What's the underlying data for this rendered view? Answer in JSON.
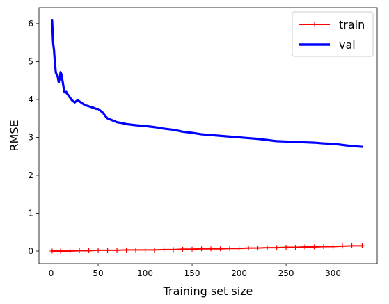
{
  "chart_data": {
    "type": "line",
    "title": "",
    "xlabel": "Training set size",
    "ylabel": "RMSE",
    "xlim": [
      -13,
      347
    ],
    "ylim": [
      -0.33,
      6.42
    ],
    "xticks": [
      0,
      50,
      100,
      150,
      200,
      250,
      300
    ],
    "yticks": [
      0,
      1,
      2,
      3,
      4,
      5,
      6
    ],
    "grid": false,
    "legend_position": "top-right",
    "series": [
      {
        "name": "train",
        "color": "#ff0000",
        "line_style": "solid",
        "marker": "plus",
        "x": [
          1,
          10,
          20,
          30,
          40,
          50,
          60,
          70,
          80,
          90,
          100,
          110,
          120,
          130,
          140,
          150,
          160,
          170,
          180,
          190,
          200,
          210,
          220,
          230,
          240,
          250,
          260,
          270,
          280,
          290,
          300,
          310,
          320,
          331
        ],
        "y": [
          0.0,
          0.0,
          0.0,
          0.01,
          0.01,
          0.02,
          0.02,
          0.02,
          0.03,
          0.03,
          0.03,
          0.03,
          0.04,
          0.04,
          0.05,
          0.05,
          0.06,
          0.06,
          0.06,
          0.07,
          0.07,
          0.08,
          0.08,
          0.09,
          0.09,
          0.1,
          0.1,
          0.11,
          0.11,
          0.12,
          0.12,
          0.13,
          0.14,
          0.14
        ]
      },
      {
        "name": "val",
        "color": "#0000ff",
        "line_style": "solid",
        "marker": "none",
        "x": [
          1,
          2,
          3,
          4,
          5,
          6,
          7,
          8,
          9,
          10,
          11,
          12,
          13,
          14,
          15,
          16,
          17,
          18,
          20,
          22,
          25,
          28,
          30,
          33,
          36,
          40,
          45,
          48,
          50,
          55,
          58,
          60,
          65,
          70,
          75,
          80,
          90,
          100,
          110,
          120,
          130,
          140,
          150,
          160,
          170,
          180,
          190,
          200,
          210,
          220,
          230,
          240,
          250,
          260,
          270,
          280,
          290,
          300,
          310,
          320,
          331
        ],
        "y": [
          6.08,
          5.5,
          5.3,
          4.95,
          4.7,
          4.65,
          4.6,
          4.45,
          4.55,
          4.72,
          4.65,
          4.5,
          4.35,
          4.2,
          4.18,
          4.2,
          4.15,
          4.12,
          4.05,
          3.98,
          3.92,
          3.98,
          3.95,
          3.9,
          3.85,
          3.82,
          3.78,
          3.75,
          3.75,
          3.65,
          3.55,
          3.5,
          3.45,
          3.4,
          3.38,
          3.35,
          3.32,
          3.3,
          3.27,
          3.23,
          3.2,
          3.15,
          3.12,
          3.08,
          3.06,
          3.04,
          3.02,
          3.0,
          2.98,
          2.96,
          2.93,
          2.9,
          2.89,
          2.88,
          2.87,
          2.86,
          2.84,
          2.83,
          2.8,
          2.77,
          2.75
        ]
      }
    ]
  }
}
